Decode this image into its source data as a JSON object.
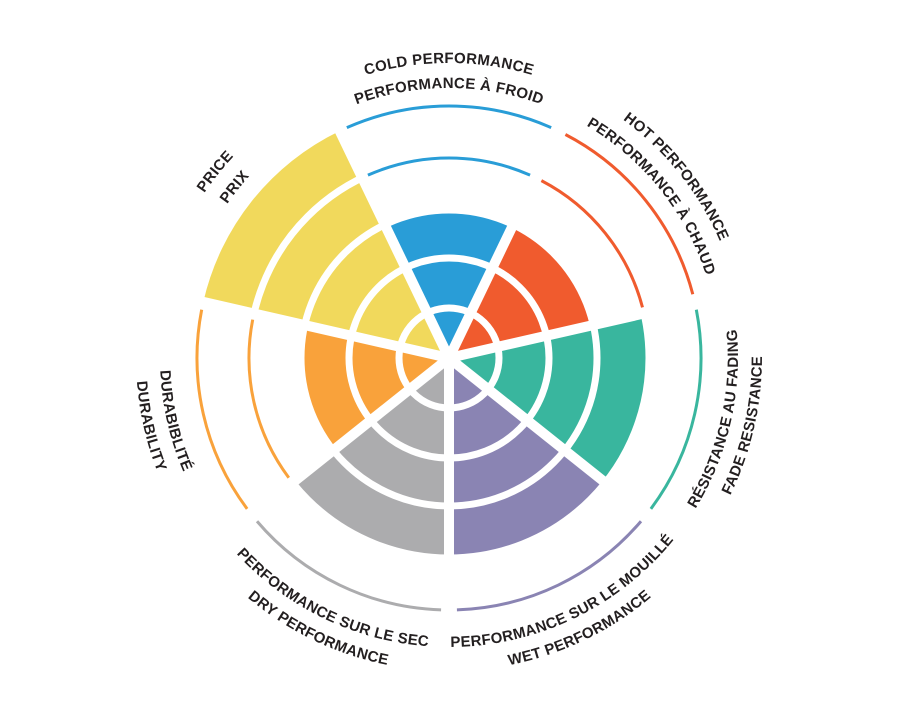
{
  "page": {
    "background_color": "#FFFFFF"
  },
  "chart_data": {
    "type": "polar_sector_rating",
    "title": "",
    "scale_max": 5,
    "start_angle_deg": 90,
    "direction": "clockwise",
    "grid": "concentric-rings-with-radial-gaps",
    "legend_position": "curved-labels-around-rim",
    "text_color": "#231F20",
    "gap_color": "#FFFFFF",
    "categories": [
      {
        "id": "cold-performance",
        "label_line1": "COLD PERFORMANCE",
        "label_line2": "PERFORMANCE À FROID",
        "value": 3,
        "color": "#299DD7"
      },
      {
        "id": "hot-performance",
        "label_line1": "HOT PERFORMANCE",
        "label_line2": "PERFORMANCE À CHAUD",
        "value": 3,
        "color": "#F05B2E"
      },
      {
        "id": "fade-resistance",
        "label_line1": "RÉSISTANCE AU FADING",
        "label_line2": "FADE RESISTANCE",
        "value": 4,
        "color": "#39B69E"
      },
      {
        "id": "wet-performance",
        "label_line1": "PERFORMANCE SUR LE MOUILLÉ",
        "label_line2": "WET PERFORMANCE",
        "value": 4,
        "color": "#8A84B3"
      },
      {
        "id": "dry-performance",
        "label_line1": "PERFORMANCE SUR LE SEC",
        "label_line2": "DRY PERFORMANCE",
        "value": 4,
        "color": "#ACACAE"
      },
      {
        "id": "durability",
        "label_line1": "DURABIBLITÉ",
        "label_line2": "DURABILITY",
        "value": 3,
        "color": "#F9A23B"
      },
      {
        "id": "price",
        "label_line1": "PRICE",
        "label_line2": "PRIX",
        "value": 5,
        "color": "#F1D95C"
      }
    ]
  }
}
